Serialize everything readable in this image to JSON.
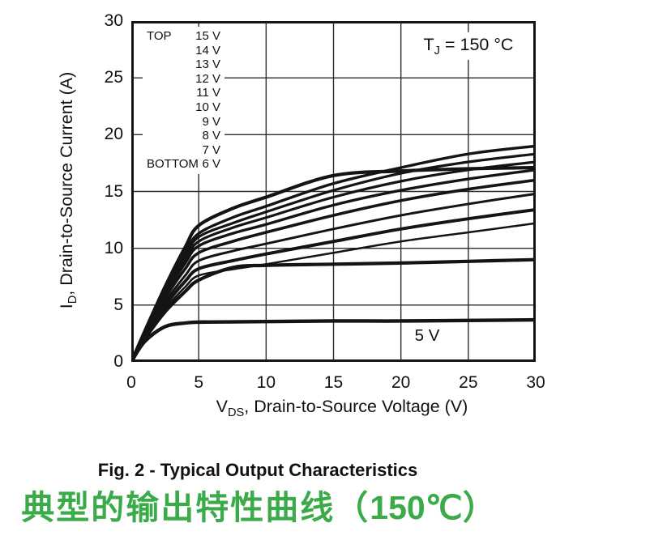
{
  "figure": {
    "tj": {
      "pre": "T",
      "sub": "J",
      "post": " = 150 °C"
    },
    "legend": {
      "top_label": "TOP",
      "bottom_label": "BOTTOM",
      "entries": [
        "15 V",
        "14 V",
        "13 V",
        "12 V",
        "11 V",
        "10 V",
        "9 V",
        "8 V",
        "7 V",
        "6 V"
      ]
    },
    "inline_curve_label": "5 V",
    "caption_en": "Fig. 2 - Typical Output Characteristics",
    "caption_zh_prefix": "典型的输出特性曲线（",
    "caption_zh_temp": "150℃",
    "caption_zh_suffix": "）",
    "colors": {
      "caption_green": "#3BAA49",
      "curve": "#141414",
      "grid": "#2d2d2d"
    }
  },
  "chart_data": {
    "type": "line",
    "title": "",
    "xlabel": {
      "pre": "V",
      "sub": "DS",
      "post": ", Drain-to-Source Voltage (V)"
    },
    "ylabel": {
      "pre": "I",
      "sub": "D",
      "post": ", Drain-to-Source Current (A)"
    },
    "xlim": [
      0,
      30
    ],
    "ylim": [
      0,
      30
    ],
    "xticks": [
      0,
      5,
      10,
      15,
      20,
      25,
      30
    ],
    "yticks": [
      0,
      5,
      10,
      15,
      20,
      25,
      30
    ],
    "grid": true,
    "legend_position": "inside-top-left",
    "annotation": "TJ = 150 °C",
    "x": [
      0,
      1,
      2.5,
      4,
      5,
      7.5,
      10,
      15,
      20,
      25,
      30
    ],
    "series": [
      {
        "name": "15 V",
        "lw": 3.4,
        "values": [
          0,
          2.6,
          6.3,
          9.6,
          11.3,
          12.7,
          13.7,
          15.7,
          17.1,
          18.3,
          19.0
        ]
      },
      {
        "name": "14 V",
        "lw": 3.2,
        "values": [
          0,
          2.55,
          6.15,
          9.3,
          11.0,
          12.2,
          13.2,
          15.1,
          16.6,
          17.6,
          18.3
        ]
      },
      {
        "name": "13 V",
        "lw": 3.2,
        "values": [
          0,
          2.5,
          6.0,
          9.0,
          10.6,
          11.8,
          12.7,
          14.5,
          15.9,
          16.9,
          17.6
        ]
      },
      {
        "name": "12 V",
        "lw": 4.2,
        "values": [
          0,
          2.7,
          6.6,
          10.1,
          12.0,
          13.5,
          14.5,
          16.4,
          16.8,
          17.0,
          17.1
        ]
      },
      {
        "name": "11 V",
        "lw": 3.4,
        "values": [
          0,
          2.45,
          5.85,
          8.7,
          10.2,
          11.3,
          12.1,
          13.8,
          15.1,
          16.1,
          16.9
        ]
      },
      {
        "name": "10 V",
        "lw": 3.6,
        "values": [
          0,
          2.4,
          5.6,
          8.2,
          9.6,
          10.6,
          11.4,
          12.9,
          14.2,
          15.2,
          16.0
        ]
      },
      {
        "name": "9 V",
        "lw": 3.0,
        "values": [
          0,
          2.3,
          5.25,
          7.6,
          8.9,
          9.75,
          10.4,
          11.7,
          12.9,
          13.9,
          14.8
        ]
      },
      {
        "name": "8 V",
        "lw": 4.0,
        "values": [
          0,
          2.2,
          4.95,
          7.1,
          8.2,
          8.9,
          9.5,
          10.6,
          11.7,
          12.6,
          13.4
        ]
      },
      {
        "name": "7 V",
        "lw": 2.5,
        "values": [
          0,
          2.1,
          4.65,
          6.6,
          7.6,
          8.15,
          8.6,
          9.6,
          10.6,
          11.4,
          12.2
        ]
      },
      {
        "name": "6 V",
        "lw": 4.2,
        "values": [
          0,
          2.0,
          4.4,
          6.2,
          7.2,
          8.3,
          8.5,
          8.6,
          8.7,
          8.85,
          9.0
        ]
      },
      {
        "name": "5 V",
        "lw": 4.4,
        "values": [
          0,
          1.8,
          3.1,
          3.42,
          3.5,
          3.52,
          3.55,
          3.6,
          3.6,
          3.65,
          3.7
        ]
      }
    ]
  }
}
